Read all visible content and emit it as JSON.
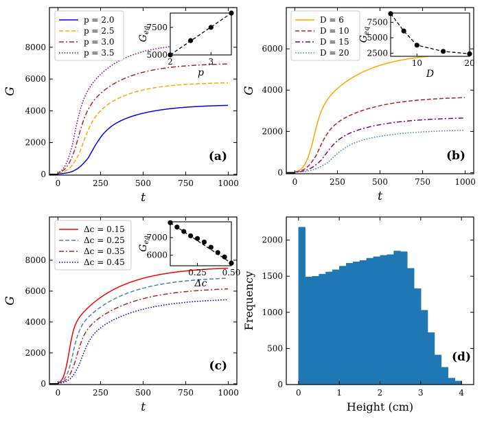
{
  "figure_title": "",
  "chart_data": [
    {
      "id": "a",
      "type": "line",
      "panel_tag": "(a)",
      "xlabel": "t",
      "ylabel": "G",
      "xlim": [
        -50,
        1050
      ],
      "ylim": [
        -50,
        10500
      ],
      "xticks": [
        0,
        250,
        500,
        750,
        1000
      ],
      "xtick_labels": [
        "0",
        "250",
        "500",
        "750",
        "1000"
      ],
      "yticks": [
        0,
        2000,
        4000,
        6000,
        8000
      ],
      "ytick_labels": [
        "0",
        "2000",
        "4000",
        "6000",
        "8000"
      ],
      "legend_position": "upper-left",
      "series": [
        {
          "name": "p = 2.0",
          "color": "#0000ff",
          "dash": "solid",
          "params": {
            "Geq": 4400,
            "t0": 175,
            "w": 40,
            "tau": 220
          }
        },
        {
          "name": "p = 2.5",
          "color": "#ffa500",
          "dash": "dashed",
          "params": {
            "Geq": 5800,
            "t0": 125,
            "w": 33,
            "tau": 200
          }
        },
        {
          "name": "p = 3.0",
          "color": "#b22222",
          "dash": "dashdot",
          "params": {
            "Geq": 7000,
            "t0": 100,
            "w": 28,
            "tau": 210
          }
        },
        {
          "name": "p = 3.5",
          "color": "#800080",
          "dash": "dotted",
          "params": {
            "Geq": 8300,
            "t0": 85,
            "w": 24,
            "tau": 200
          }
        }
      ],
      "inset": {
        "xlabel": "p",
        "ylabel": "G_eq",
        "xlim": [
          2,
          3.5
        ],
        "ylim": [
          5000,
          8800
        ],
        "xticks": [
          2,
          3
        ],
        "xtick_labels": [
          "2",
          "3"
        ],
        "yticks": [
          5000,
          7500
        ],
        "ytick_labels": [
          "5000",
          "7500"
        ],
        "x": [
          2.0,
          2.5,
          3.0,
          3.5
        ],
        "y": [
          5000,
          6300,
          7500,
          8800
        ],
        "fit": "linear"
      }
    },
    {
      "id": "b",
      "type": "line",
      "panel_tag": "(b)",
      "xlabel": "t",
      "ylabel": "G",
      "xlim": [
        -50,
        1050
      ],
      "ylim": [
        -50,
        8000
      ],
      "xticks": [
        0,
        250,
        500,
        750,
        1000
      ],
      "xtick_labels": [
        "0",
        "250",
        "500",
        "750",
        "1000"
      ],
      "yticks": [
        0,
        2000,
        4000,
        6000
      ],
      "ytick_labels": [
        "0",
        "2000",
        "4000",
        "6000"
      ],
      "legend_position": "upper-left",
      "series": [
        {
          "name": "D = 6",
          "color": "#ffa500",
          "dash": "solid",
          "params": {
            "Geq": 5850,
            "t0": 100,
            "w": 24,
            "tau": 250
          }
        },
        {
          "name": "D = 10",
          "color": "#b22222",
          "dash": "dashed",
          "params": {
            "Geq": 3700,
            "t0": 125,
            "w": 32,
            "tau": 250
          }
        },
        {
          "name": "D = 15",
          "color": "#800080",
          "dash": "dashdot",
          "params": {
            "Geq": 2700,
            "t0": 155,
            "w": 40,
            "tau": 250
          }
        },
        {
          "name": "D = 20",
          "color": "#4682b4",
          "dash": "dotted",
          "params": {
            "Geq": 2100,
            "t0": 190,
            "w": 48,
            "tau": 250
          }
        }
      ],
      "inset": {
        "xlabel": "D",
        "ylabel": "G_eq",
        "xlim": [
          5,
          20
        ],
        "ylim": [
          2000,
          9000
        ],
        "xticks": [
          10,
          20
        ],
        "xtick_labels": [
          "10",
          "20"
        ],
        "yticks": [
          2500,
          5000,
          7500
        ],
        "ytick_labels": [
          "2500",
          "5000",
          "7500"
        ],
        "x": [
          5,
          7.5,
          10,
          15,
          20
        ],
        "y": [
          8900,
          6100,
          3800,
          2800,
          2400
        ],
        "fit": "curve"
      }
    },
    {
      "id": "c",
      "type": "line",
      "panel_tag": "(c)",
      "xlabel": "t",
      "ylabel": "G",
      "xlim": [
        -50,
        1050
      ],
      "ylim": [
        -50,
        10800
      ],
      "xticks": [
        0,
        250,
        500,
        750,
        1000
      ],
      "xtick_labels": [
        "0",
        "250",
        "500",
        "750",
        "1000"
      ],
      "yticks": [
        0,
        2000,
        4000,
        6000,
        8000
      ],
      "ytick_labels": [
        "0",
        "2000",
        "4000",
        "6000",
        "8000"
      ],
      "legend_position": "upper-left",
      "series": [
        {
          "name": "Δc = 0.15",
          "color": "#ff0000",
          "dash": "solid",
          "params": {
            "Geq": 7600,
            "t0": 60,
            "w": 15,
            "tau": 260
          }
        },
        {
          "name": "Δc = 0.25",
          "color": "#4682b4",
          "dash": "dashed",
          "params": {
            "Geq": 6950,
            "t0": 80,
            "w": 19,
            "tau": 260
          }
        },
        {
          "name": "Δc = 0.35",
          "color": "#b22222",
          "dash": "dashdot",
          "params": {
            "Geq": 6250,
            "t0": 100,
            "w": 23,
            "tau": 260
          }
        },
        {
          "name": "Δc = 0.45",
          "color": "#0000cd",
          "dash": "dotted",
          "params": {
            "Geq": 5550,
            "t0": 125,
            "w": 28,
            "tau": 260
          }
        }
      ],
      "inset": {
        "xlabel": "Δc",
        "ylabel": "G_eq",
        "xlim": [
          0.05,
          0.5
        ],
        "ylim": [
          5400,
          7900
        ],
        "xticks": [
          0.25,
          0.5
        ],
        "xtick_labels": [
          "0.25",
          "0.50"
        ],
        "yticks": [
          6000,
          7000
        ],
        "ytick_labels": [
          "6000",
          "7000"
        ],
        "x": [
          0.05,
          0.1,
          0.15,
          0.2,
          0.25,
          0.3,
          0.35,
          0.4,
          0.45,
          0.5
        ],
        "y": [
          7850,
          7600,
          7350,
          7100,
          6950,
          6750,
          6450,
          6150,
          5900,
          5550
        ],
        "fit": "linear"
      }
    },
    {
      "id": "d",
      "type": "bar",
      "panel_tag": "(d)",
      "xlabel": "Height (cm)",
      "ylabel": "Frequency",
      "xlim": [
        -0.3,
        4.3
      ],
      "ylim": [
        0,
        2320
      ],
      "xticks": [
        0,
        1,
        2,
        3,
        4
      ],
      "xtick_labels": [
        "0",
        "1",
        "2",
        "3",
        "4"
      ],
      "yticks": [
        0,
        500,
        1000,
        1500,
        2000
      ],
      "ytick_labels": [
        "0",
        "500",
        "1000",
        "1500",
        "2000"
      ],
      "color": "#1f77b4",
      "bin_start": 0,
      "bin_width": 0.167,
      "values": [
        2180,
        1490,
        1500,
        1530,
        1560,
        1590,
        1640,
        1680,
        1700,
        1720,
        1750,
        1770,
        1790,
        1800,
        1850,
        1840,
        1610,
        1330,
        1030,
        720,
        410,
        240,
        90,
        50
      ]
    }
  ]
}
